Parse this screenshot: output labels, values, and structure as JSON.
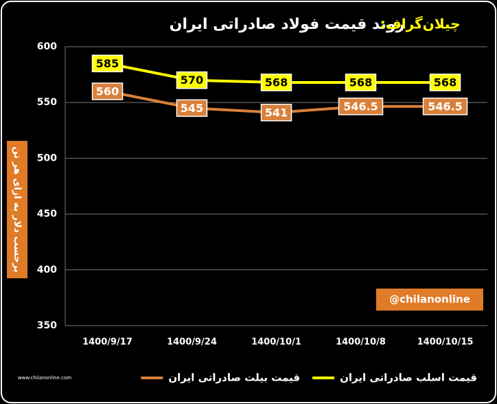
{
  "chart_data": {
    "type": "line",
    "brand": "چیلان‌گراف:",
    "title": "روند قیمت فولاد صادراتی ایران",
    "y_label": "برحسب دلار به ازای هر تن",
    "annotation": "@chilanonline",
    "website": "www.chilanonline.com",
    "categories": [
      "1400/9/17",
      "1400/9/24",
      "1400/10/1",
      "1400/10/8",
      "1400/10/15"
    ],
    "series": [
      {
        "name": "قیمت اسلب صادراتی ایران",
        "color": "#ffff00",
        "values": [
          585,
          570,
          568,
          568,
          568
        ]
      },
      {
        "name": "قیمت بیلت صادراتی ایران",
        "color": "#d9803a",
        "values": [
          560,
          545,
          541,
          546.5,
          546.5
        ]
      }
    ],
    "ylim": [
      350,
      600
    ],
    "yticks": [
      350,
      400,
      450,
      500,
      550,
      600
    ],
    "grid": true
  }
}
